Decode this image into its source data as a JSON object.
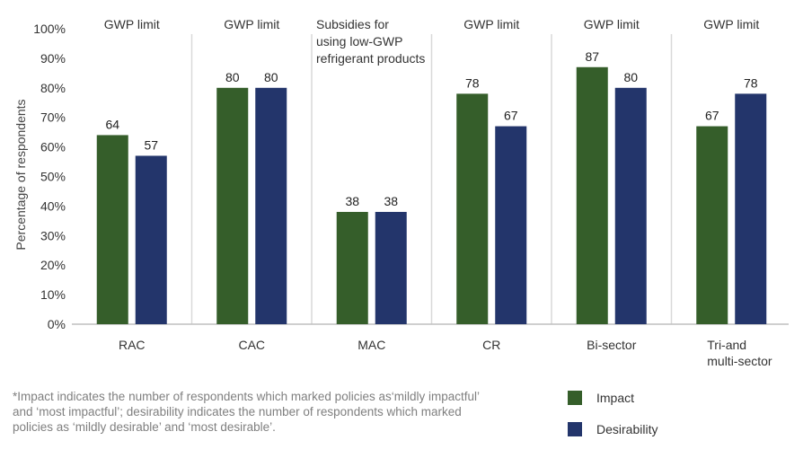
{
  "chart_data": {
    "type": "bar",
    "ylabel": "Percentage of respondents",
    "xlabel": "",
    "ylim": [
      0,
      100
    ],
    "yticks": [
      "0%",
      "10%",
      "20%",
      "30%",
      "40%",
      "50%",
      "60%",
      "70%",
      "80%",
      "90%",
      "100%"
    ],
    "categories": [
      "RAC",
      "CAC",
      "MAC",
      "CR",
      "Bi-sector",
      "Tri-and multi-sector"
    ],
    "category_label_lines": [
      [
        "RAC"
      ],
      [
        "CAC"
      ],
      [
        "MAC"
      ],
      [
        "CR"
      ],
      [
        "Bi-sector"
      ],
      [
        "Tri-and",
        "multi-sector"
      ]
    ],
    "panel_titles": [
      [
        "GWP limit"
      ],
      [
        "GWP limit"
      ],
      [
        "Subsidies for",
        "using low-GWP",
        "refrigerant products"
      ],
      [
        "GWP limit"
      ],
      [
        "GWP limit"
      ],
      [
        "GWP limit"
      ]
    ],
    "series": [
      {
        "name": "Impact",
        "color": "#355E2A",
        "values": [
          64,
          80,
          38,
          78,
          87,
          67
        ]
      },
      {
        "name": "Desirability",
        "color": "#23356B",
        "values": [
          57,
          80,
          38,
          67,
          80,
          78
        ]
      }
    ],
    "grid": false,
    "separators": true,
    "legend_position": "bottom-right"
  },
  "footnote": "*Impact indicates the number of respondents which marked policies as‘mildly impactful’ and ‘most impactful’; desirability indicates the number of respondents which marked policies as ‘mildly desirable’ and ‘most desirable’."
}
